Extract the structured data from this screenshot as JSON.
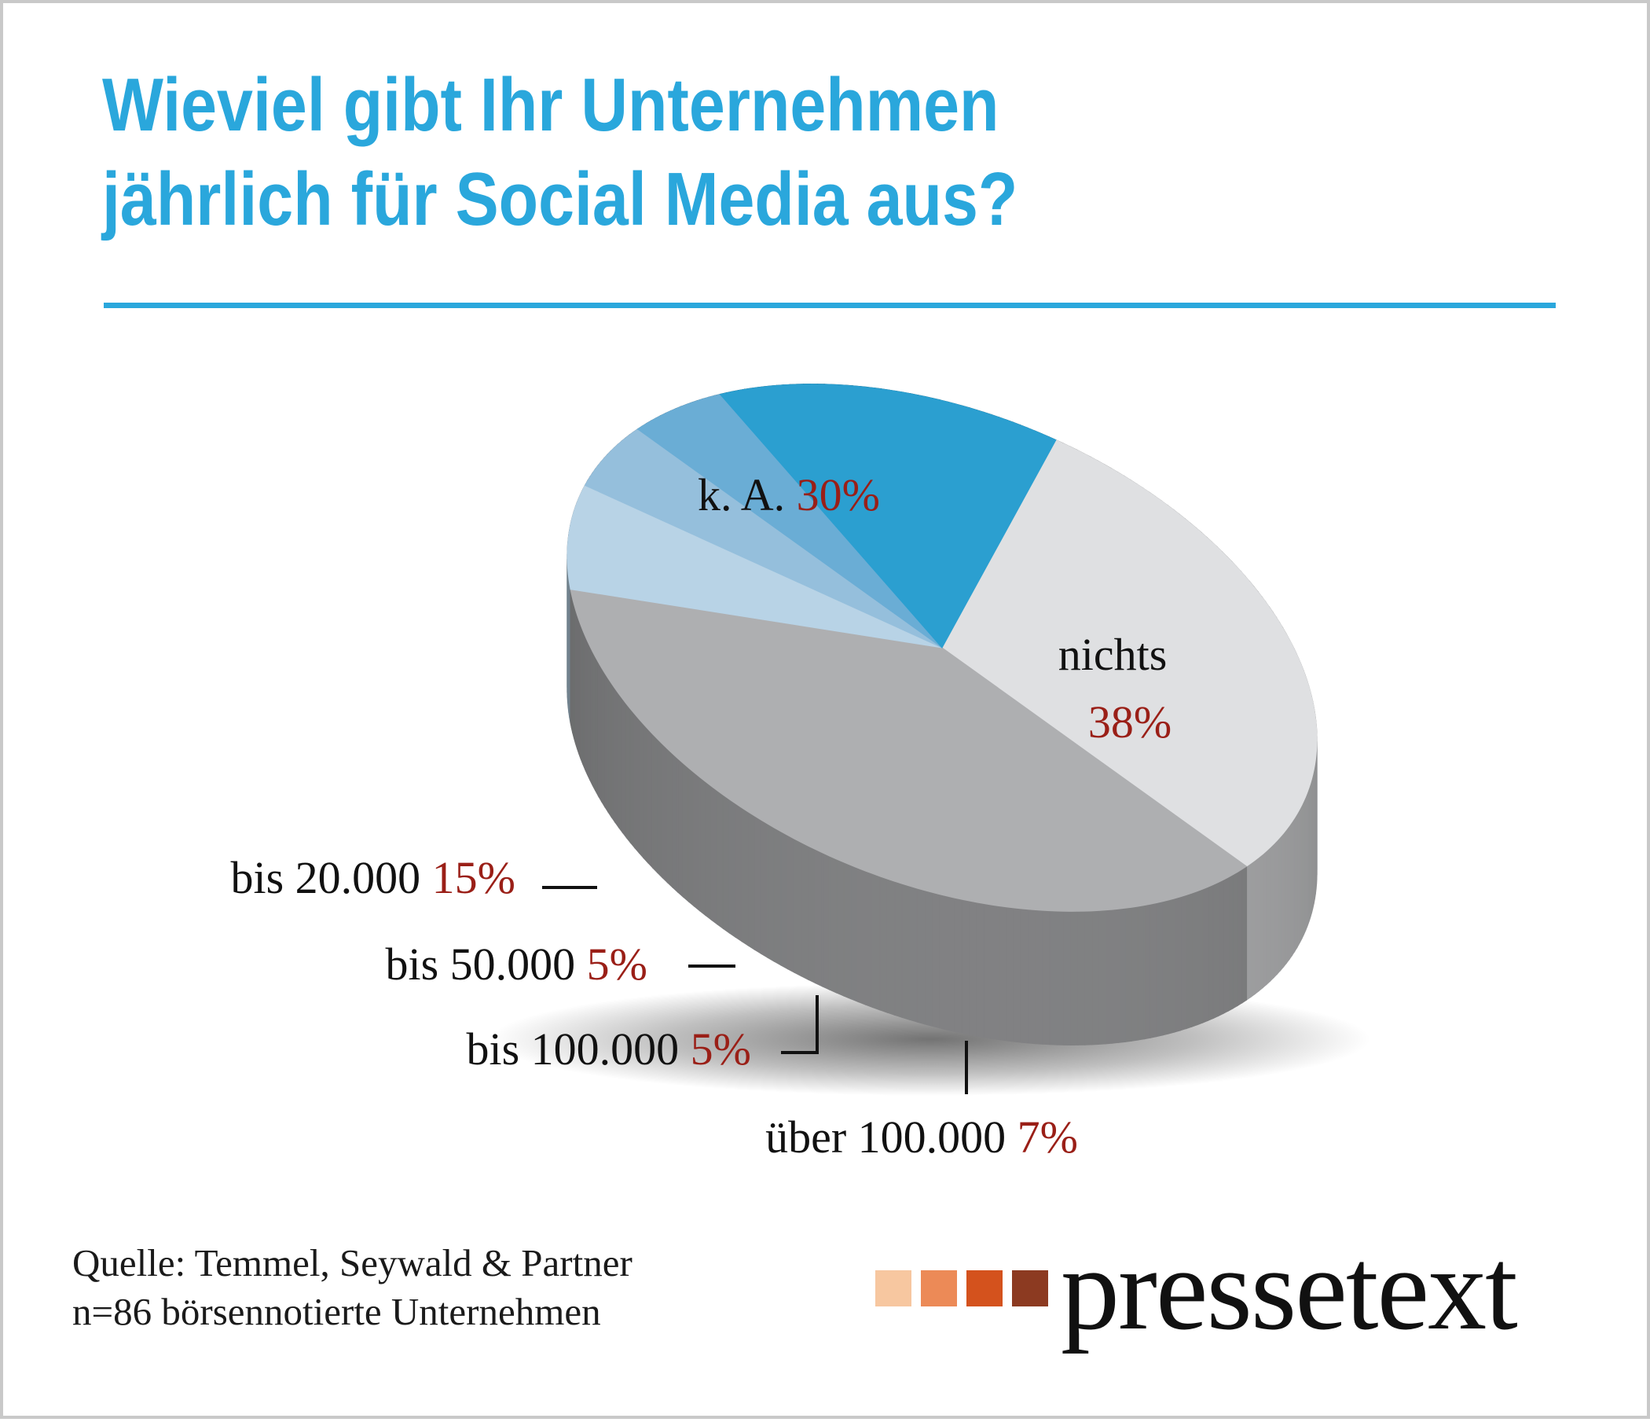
{
  "title_lines": [
    "Wieviel gibt Ihr Unternehmen",
    "jährlich für Social Media aus?"
  ],
  "chart_data": {
    "type": "pie",
    "title": "Wieviel gibt Ihr Unternehmen jährlich für Social Media aus?",
    "labels": [
      "k. A.",
      "nichts",
      "über 100.000",
      "bis 100.000",
      "bis 50.000",
      "bis 20.000"
    ],
    "values": [
      30,
      38,
      7,
      5,
      5,
      15
    ],
    "value_labels": [
      "30%",
      "38%",
      "7%",
      "5%",
      "5%",
      "15%"
    ],
    "colors": [
      "#dfe0e2",
      "#aeafb1",
      "#b8d3e6",
      "#95bfdc",
      "#6aadd5",
      "#2b9fd0"
    ],
    "label_text_color": "#111111",
    "value_text_color": "#9a1f17",
    "style": "3d-tilted"
  },
  "source_lines": [
    "Quelle: Temmel, Seywald & Partner",
    "n=86 börsennotierte Unternehmen"
  ],
  "brand": {
    "name": "pressetext",
    "square_colors": [
      "#f7c7a0",
      "#ec8a57",
      "#d4521d",
      "#8c3a21"
    ]
  }
}
